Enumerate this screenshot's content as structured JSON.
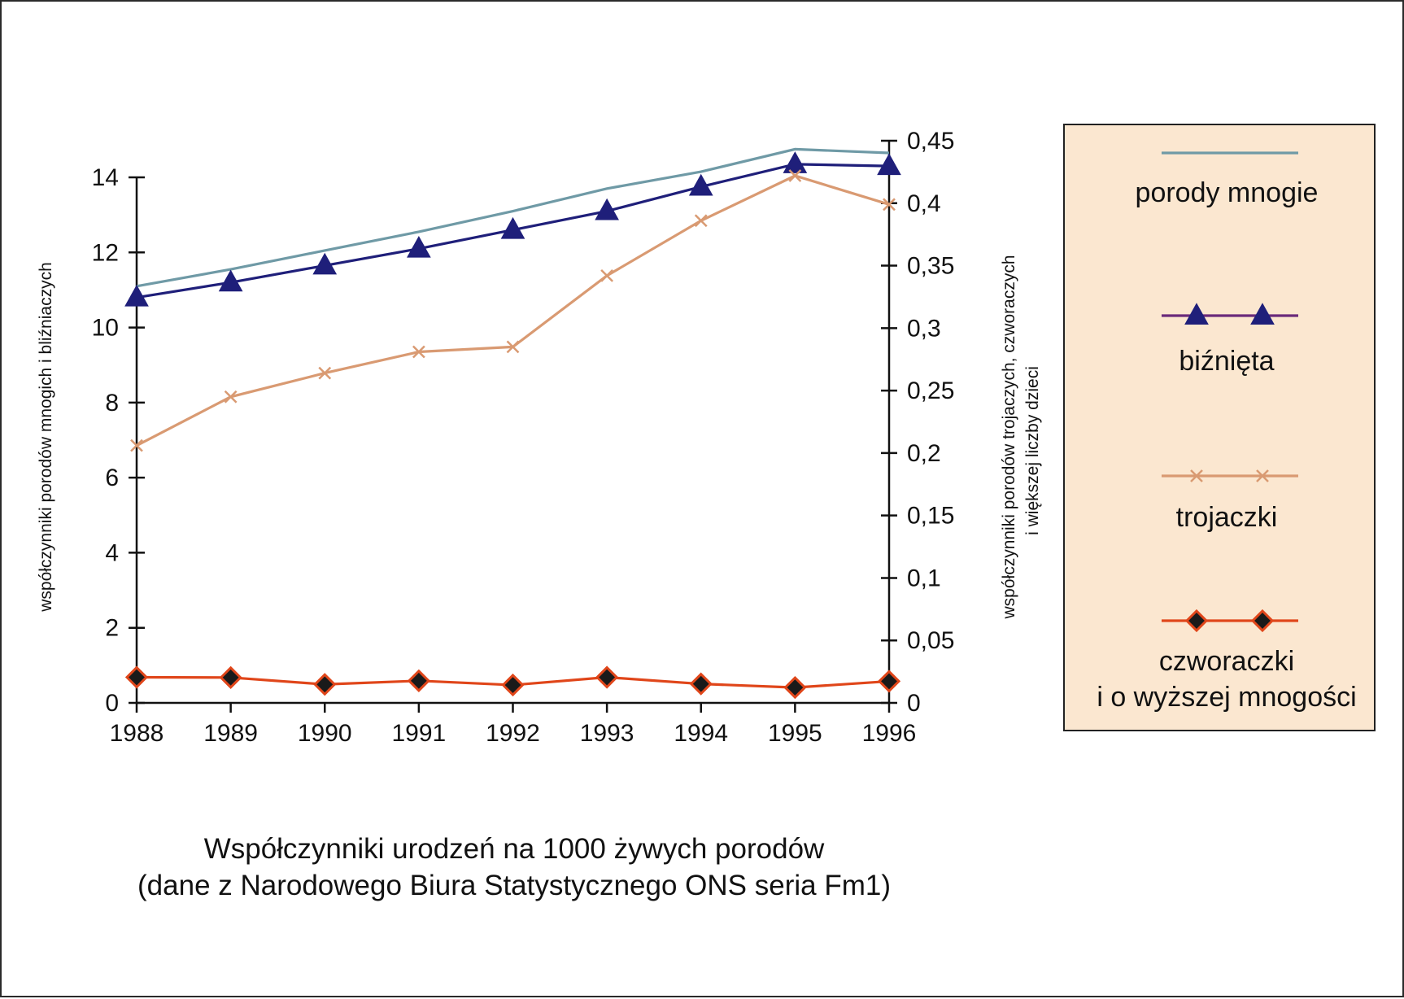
{
  "chart_data": {
    "type": "line",
    "title": "",
    "caption": [
      "Współczynniki urodzeń na 1000 żywych porodów",
      "(dane z Narodowego Biura Statystycznego ONS seria Fm1)"
    ],
    "x": [
      "1988",
      "1989",
      "1990",
      "1991",
      "1992",
      "1993",
      "1994",
      "1995",
      "1996"
    ],
    "y_left": {
      "label": "współczynniki porodów mnogich i bliźniaczych",
      "ticks": [
        "0",
        "2",
        "4",
        "6",
        "8",
        "10",
        "12",
        "14"
      ],
      "ylim": [
        0,
        14
      ]
    },
    "y_right": {
      "label_lines": [
        "współczynniki porodów trojaczych, czworaczych",
        "i większej liczby dzieci"
      ],
      "ticks": [
        "0",
        "0,05",
        "0,1",
        "0,15",
        "0,2",
        "0,25",
        "0,3",
        "0,35",
        "0,4",
        "0,45"
      ],
      "ylim": [
        0,
        0.45
      ]
    },
    "series": [
      {
        "name": "porody mnogie",
        "axis": "left",
        "marker": "none",
        "color": "#6f9aa6",
        "values": [
          11.1,
          11.55,
          12.05,
          12.55,
          13.1,
          13.7,
          14.15,
          14.75,
          14.65
        ]
      },
      {
        "name": "biźnięta",
        "axis": "left",
        "marker": "triangle",
        "color": "#1f1f7a",
        "legend_line_color": "#6a2a7a",
        "values": [
          10.8,
          11.2,
          11.65,
          12.1,
          12.6,
          13.1,
          13.75,
          14.35,
          14.3
        ]
      },
      {
        "name": "trojaczki",
        "axis": "right",
        "marker": "x",
        "color": "#d99a72",
        "values": [
          0.206,
          0.245,
          0.264,
          0.281,
          0.285,
          0.342,
          0.386,
          0.422,
          0.399
        ]
      },
      {
        "name_lines": [
          "czworaczki",
          "i o wyższej mnogości"
        ],
        "axis": "right",
        "marker": "diamond",
        "color": "#e0461a",
        "values": [
          0.0205,
          0.0203,
          0.0148,
          0.0177,
          0.0143,
          0.0205,
          0.0152,
          0.0123,
          0.0173
        ]
      }
    ],
    "legend": {
      "placement": "right",
      "background": "#fbe7d0"
    },
    "grid": false
  }
}
